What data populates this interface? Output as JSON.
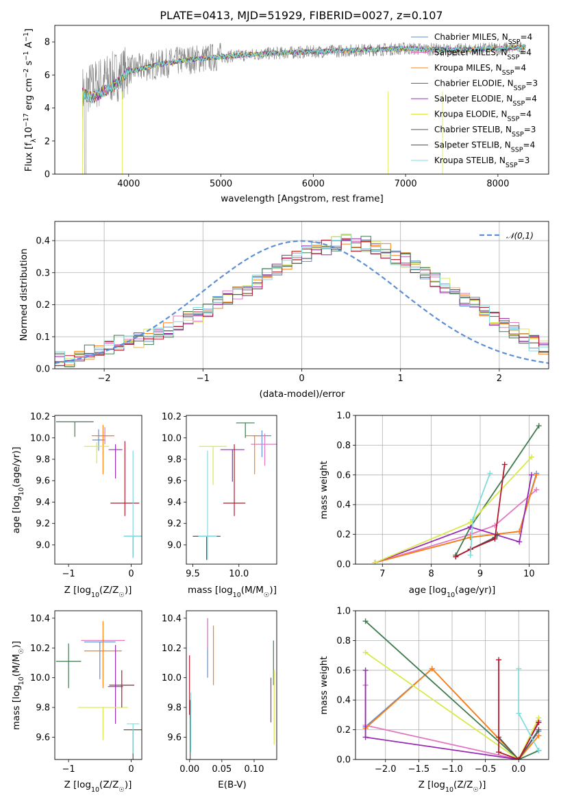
{
  "title": "PLATE=0413, MJD=51929, FIBERID=0027, z=0.107",
  "model_names": [
    "Chabrier MILES",
    "Salpeter MILES",
    "Kroupa MILES",
    "Chabrier ELODIE",
    "Salpeter ELODIE",
    "Kroupa ELODIE",
    "Chabrier STELIB",
    "Salpeter STELIB",
    "Kroupa STELIB"
  ],
  "colors": [
    "#5b8ed6",
    "#e377c2",
    "#ff7f0e",
    "#3e7a4e",
    "#9628b4",
    "#d9e94a",
    "#555555",
    "#b2182b",
    "#7fdcdc"
  ],
  "n_ssp": [
    4,
    4,
    4,
    3,
    4,
    4,
    3,
    4,
    3
  ],
  "chart_data": [
    {
      "type": "line",
      "title": "PLATE=0413, MJD=51929, FIBERID=0027, z=0.107",
      "xlabel": "wavelength [Angstrom, rest frame]",
      "ylabel": "Flux [f_λ 10^-17 erg cm^-2 s^-1 A^-1]",
      "xlim": [
        3200,
        8550
      ],
      "ylim": [
        0,
        9
      ],
      "xticks": [
        4000,
        5000,
        6000,
        7000,
        8000
      ],
      "yticks": [
        0,
        2,
        4,
        6,
        8
      ],
      "legend_position": "top-right",
      "legend": [
        "Chabrier MILES, N_SSP=4",
        "Salpeter MILES, N_SSP=4",
        "Kroupa MILES, N_SSP=4",
        "Chabrier ELODIE, N_SSP=3",
        "Salpeter ELODIE, N_SSP=4",
        "Kroupa ELODIE, N_SSP=4",
        "Chabrier STELIB, N_SSP=3",
        "Salpeter STELIB, N_SSP=4",
        "Kroupa STELIB, N_SSP=3"
      ],
      "data_series": {
        "name": "data",
        "color": "#808080",
        "x_range": [
          3500,
          8300
        ],
        "approx_points": [
          [
            3500,
            5.0
          ],
          [
            3700,
            5.6
          ],
          [
            3900,
            6.0
          ],
          [
            4000,
            6.3
          ],
          [
            4300,
            6.6
          ],
          [
            4600,
            6.9
          ],
          [
            5000,
            7.1
          ],
          [
            5500,
            7.3
          ],
          [
            6000,
            7.4
          ],
          [
            6500,
            7.5
          ],
          [
            7000,
            7.6
          ],
          [
            7500,
            7.5
          ],
          [
            8000,
            7.6
          ],
          [
            8300,
            7.7
          ]
        ]
      },
      "model_series": {
        "name": "models",
        "x_range": [
          3500,
          8300
        ],
        "approx_points": [
          [
            3500,
            4.9
          ],
          [
            3600,
            4.6
          ],
          [
            3700,
            4.9
          ],
          [
            3800,
            5.2
          ],
          [
            3900,
            5.6
          ],
          [
            4000,
            6.2
          ],
          [
            4300,
            6.6
          ],
          [
            4600,
            6.9
          ],
          [
            5000,
            7.1
          ],
          [
            5500,
            7.3
          ],
          [
            6000,
            7.4
          ],
          [
            6500,
            7.5
          ],
          [
            7000,
            7.6
          ],
          [
            7500,
            7.5
          ],
          [
            8000,
            7.6
          ],
          [
            8300,
            7.7
          ]
        ]
      }
    },
    {
      "type": "bar",
      "title": "",
      "xlabel": "(data-model)/error",
      "ylabel": "Normed distribution",
      "xlim": [
        -2.5,
        2.5
      ],
      "ylim": [
        0,
        0.46
      ],
      "xticks": [
        -2,
        -1,
        0,
        1,
        2
      ],
      "yticks": [
        0.0,
        0.1,
        0.2,
        0.3,
        0.4
      ],
      "grid": true,
      "legend": [
        "𝒩(0,1)"
      ],
      "legend_position": "top-right",
      "bins": {
        "start": -2.5,
        "width": 0.1,
        "count": 50
      },
      "hist_approx": [
        0.03,
        0.03,
        0.04,
        0.05,
        0.06,
        0.07,
        0.08,
        0.08,
        0.09,
        0.1,
        0.11,
        0.12,
        0.14,
        0.16,
        0.17,
        0.18,
        0.21,
        0.22,
        0.24,
        0.25,
        0.27,
        0.29,
        0.31,
        0.33,
        0.35,
        0.36,
        0.37,
        0.38,
        0.39,
        0.4,
        0.39,
        0.39,
        0.38,
        0.37,
        0.35,
        0.34,
        0.32,
        0.3,
        0.28,
        0.26,
        0.24,
        0.22,
        0.2,
        0.18,
        0.16,
        0.14,
        0.12,
        0.1,
        0.08,
        0.07
      ],
      "normal_curve": {
        "mu": 0,
        "sigma": 1
      }
    },
    {
      "type": "scatter",
      "panel": "age_vs_Z",
      "xlabel": "Z [log10(Z/Z☉)]",
      "ylabel": "age  [log10(age/yr)]",
      "xlim": [
        -1.22,
        0.17
      ],
      "ylim": [
        8.82,
        10.21
      ],
      "xticks": [
        -1,
        0
      ],
      "yticks": [
        9.0,
        9.2,
        9.4,
        9.6,
        9.8,
        10.0,
        10.2
      ],
      "points": [
        {
          "x": -0.52,
          "y": 9.98,
          "xerr": 0.1,
          "yerr": [
            0.1,
            0.1
          ]
        },
        {
          "x": -0.42,
          "y": 10.02,
          "xerr": 0.15,
          "yerr": [
            0.08,
            0.08
          ]
        },
        {
          "x": -0.45,
          "y": 10.02,
          "xerr": 0.18,
          "yerr": [
            0.36,
            0.1
          ]
        },
        {
          "x": -0.9,
          "y": 10.15,
          "xerr": 0.3,
          "yerr": [
            0.14,
            0.0
          ]
        },
        {
          "x": -0.25,
          "y": 9.89,
          "xerr": 0.11,
          "yerr": [
            0.27,
            0.05
          ]
        },
        {
          "x": -0.55,
          "y": 9.92,
          "xerr": 0.2,
          "yerr": [
            0.16,
            0.04
          ]
        },
        {
          "x": 0.03,
          "y": 9.08,
          "xerr": 0.15,
          "yerr": [
            0.2,
            0.0
          ]
        },
        {
          "x": -0.1,
          "y": 9.39,
          "xerr": 0.23,
          "yerr": [
            0.12,
            0.58
          ]
        },
        {
          "x": 0.03,
          "y": 9.08,
          "xerr": 0.15,
          "yerr": [
            0.2,
            0.8
          ]
        }
      ]
    },
    {
      "type": "scatter",
      "panel": "age_vs_mass",
      "xlabel": "mass [log10(M/M☉)]",
      "ylabel": "",
      "xlim": [
        9.43,
        10.41
      ],
      "ylim": [
        8.82,
        10.21
      ],
      "xticks": [
        9.5,
        10.0
      ],
      "yticks": [
        9.0,
        9.2,
        9.4,
        9.6,
        9.8,
        10.0,
        10.2
      ],
      "points": [
        {
          "x": 10.25,
          "y": 10.02,
          "xerr": 0.1,
          "yerr": [
            0.2,
            0.05
          ]
        },
        {
          "x": 10.28,
          "y": 9.94,
          "xerr": 0.15,
          "yerr": [
            0.2,
            0.1
          ]
        },
        {
          "x": 10.17,
          "y": 10.02,
          "xerr": 0.1,
          "yerr": [
            0.36,
            0.0
          ]
        },
        {
          "x": 10.07,
          "y": 10.14,
          "xerr": 0.1,
          "yerr": [
            0.14,
            0.0
          ]
        },
        {
          "x": 9.93,
          "y": 9.89,
          "xerr": 0.13,
          "yerr": [
            0.3,
            0.0
          ]
        },
        {
          "x": 9.72,
          "y": 9.92,
          "xerr": 0.15,
          "yerr": [
            0.36,
            0.0
          ]
        },
        {
          "x": 9.65,
          "y": 9.08,
          "xerr": 0.15,
          "yerr": [
            0.22,
            0.0
          ]
        },
        {
          "x": 9.95,
          "y": 9.39,
          "xerr": 0.12,
          "yerr": [
            0.12,
            0.55
          ]
        },
        {
          "x": 9.66,
          "y": 9.08,
          "xerr": 0.1,
          "yerr": [
            0.22,
            0.8
          ]
        }
      ]
    },
    {
      "type": "line",
      "panel": "weight_vs_age",
      "xlabel": "age  [log10(age/yr)]",
      "ylabel": "mass weight",
      "xlim": [
        6.45,
        10.4
      ],
      "ylim": [
        0,
        1.0
      ],
      "xticks": [
        7,
        8,
        9,
        10
      ],
      "yticks": [
        0.0,
        0.2,
        0.4,
        0.6,
        0.8,
        1.0
      ],
      "grid": true,
      "series": [
        {
          "x": [
            6.85,
            8.8,
            9.8,
            10.15
          ],
          "y": [
            0.01,
            0.18,
            0.22,
            0.61
          ]
        },
        {
          "x": [
            6.85,
            8.8,
            9.3,
            10.15
          ],
          "y": [
            0.01,
            0.2,
            0.26,
            0.5
          ]
        },
        {
          "x": [
            6.85,
            8.8,
            9.8,
            10.15
          ],
          "y": [
            0.01,
            0.18,
            0.22,
            0.6
          ]
        },
        {
          "x": [
            8.5,
            8.8,
            10.2
          ],
          "y": [
            0.06,
            0.25,
            0.93
          ]
        },
        {
          "x": [
            6.85,
            8.8,
            9.8,
            10.05
          ],
          "y": [
            0.01,
            0.25,
            0.15,
            0.6
          ]
        },
        {
          "x": [
            6.85,
            8.8,
            10.05
          ],
          "y": [
            0.01,
            0.28,
            0.72
          ]
        },
        {
          "x": [
            8.5,
            8.8,
            9.3,
            9.35
          ],
          "y": [
            0.05,
            0.1,
            0.18,
            0.2
          ]
        },
        {
          "x": [
            8.5,
            8.8,
            9.3,
            9.5
          ],
          "y": [
            0.05,
            0.1,
            0.17,
            0.67
          ]
        },
        {
          "x": [
            8.8,
            8.85,
            9.2
          ],
          "y": [
            0.06,
            0.3,
            0.61
          ]
        }
      ]
    },
    {
      "type": "scatter",
      "panel": "mass_vs_Z",
      "xlabel": "Z [log10(Z/Z☉)]",
      "ylabel": "mass [log10(M/M☉)]",
      "xlim": [
        -1.22,
        0.17
      ],
      "ylim": [
        9.45,
        10.45
      ],
      "xticks": [
        -1,
        0
      ],
      "yticks": [
        9.6,
        9.8,
        10.0,
        10.2,
        10.4
      ],
      "points": [
        {
          "x": -0.5,
          "y": 10.24,
          "xerr": 0.25,
          "yerr": [
            0.25,
            0.0
          ]
        },
        {
          "x": -0.45,
          "y": 10.25,
          "xerr": 0.35,
          "yerr": [
            0.0,
            0.0
          ]
        },
        {
          "x": -0.45,
          "y": 10.18,
          "xerr": 0.3,
          "yerr": [
            0.25,
            0.2
          ]
        },
        {
          "x": -1.0,
          "y": 10.11,
          "xerr": 0.2,
          "yerr": [
            0.18,
            0.12
          ]
        },
        {
          "x": -0.25,
          "y": 9.94,
          "xerr": 0.12,
          "yerr": [
            0.25,
            0.28
          ]
        },
        {
          "x": -0.45,
          "y": 9.8,
          "xerr": 0.4,
          "yerr": [
            0.22,
            0.0
          ]
        },
        {
          "x": 0.03,
          "y": 9.65,
          "xerr": 0.15,
          "yerr": [
            0.2,
            0.0
          ]
        },
        {
          "x": -0.15,
          "y": 9.95,
          "xerr": 0.2,
          "yerr": [
            0.15,
            0.1
          ]
        },
        {
          "x": 0.03,
          "y": 9.69,
          "xerr": 0.1,
          "yerr": [
            0.2,
            0.0
          ]
        }
      ]
    },
    {
      "type": "scatter",
      "panel": "mass_vs_EBV",
      "xlabel": "E(B-V)",
      "ylabel": "",
      "xlim": [
        -0.005,
        0.135
      ],
      "ylim": [
        9.45,
        10.45
      ],
      "xticks": [
        0.0,
        0.05,
        0.1
      ],
      "yticks": [
        9.6,
        9.8,
        10.0,
        10.2,
        10.4
      ],
      "points": [
        {
          "x": 0.028,
          "y": 10.2,
          "yerr": [
            0.2,
            0.2
          ]
        },
        {
          "x": 0.028,
          "y": 10.3,
          "yerr": [
            0.1,
            0.1
          ]
        },
        {
          "x": 0.037,
          "y": 10.15,
          "yerr": [
            0.2,
            0.2
          ]
        },
        {
          "x": 0.13,
          "y": 10.1,
          "yerr": [
            0.15,
            0.15
          ]
        },
        {
          "x": 0.126,
          "y": 9.85,
          "yerr": [
            0.15,
            0.15
          ]
        },
        {
          "x": 0.131,
          "y": 9.8,
          "yerr": [
            0.25,
            0.25
          ]
        },
        {
          "x": 0.001,
          "y": 9.65,
          "yerr": [
            0.2,
            0.2
          ]
        },
        {
          "x": 0.0,
          "y": 9.95,
          "yerr": [
            0.2,
            0.2
          ]
        },
        {
          "x": 0.002,
          "y": 9.7,
          "yerr": [
            0.2,
            0.2
          ]
        }
      ]
    },
    {
      "type": "line",
      "panel": "weight_vs_Z",
      "xlabel": "Z [log10(Z/Z☉)]",
      "ylabel": "mass weight",
      "xlim": [
        -2.45,
        0.45
      ],
      "ylim": [
        0,
        1.0
      ],
      "xticks": [
        -2.0,
        -1.5,
        -1.0,
        -0.5,
        0.0
      ],
      "yticks": [
        0.0,
        0.2,
        0.4,
        0.6,
        0.8,
        1.0
      ],
      "grid": true,
      "series": [
        {
          "x": [
            -2.3,
            -1.3,
            0.0,
            0.3
          ],
          "y": [
            0.22,
            0.61,
            0.0,
            0.19
          ]
        },
        {
          "x": [
            -2.3,
            -2.3,
            0.0,
            0.3
          ],
          "y": [
            0.5,
            0.23,
            0.0,
            0.26
          ]
        },
        {
          "x": [
            -2.3,
            -1.3,
            0.0,
            0.3
          ],
          "y": [
            0.21,
            0.61,
            0.0,
            0.16
          ]
        },
        {
          "x": [
            -2.3,
            0.0,
            0.3
          ],
          "y": [
            0.93,
            0.0,
            0.06
          ]
        },
        {
          "x": [
            -2.3,
            -2.3,
            0.0,
            0.3
          ],
          "y": [
            0.6,
            0.15,
            0.0,
            0.25
          ]
        },
        {
          "x": [
            -2.3,
            0.0,
            0.3
          ],
          "y": [
            0.72,
            0.0,
            0.28
          ]
        },
        {
          "x": [
            -0.3,
            0.0,
            0.3
          ],
          "y": [
            0.15,
            0.0,
            0.2
          ]
        },
        {
          "x": [
            -0.3,
            -0.3,
            0.0,
            0.3
          ],
          "y": [
            0.67,
            0.05,
            0.0,
            0.25
          ]
        },
        {
          "x": [
            0.0,
            0.0,
            0.3
          ],
          "y": [
            0.61,
            0.31,
            0.06
          ]
        }
      ]
    }
  ]
}
